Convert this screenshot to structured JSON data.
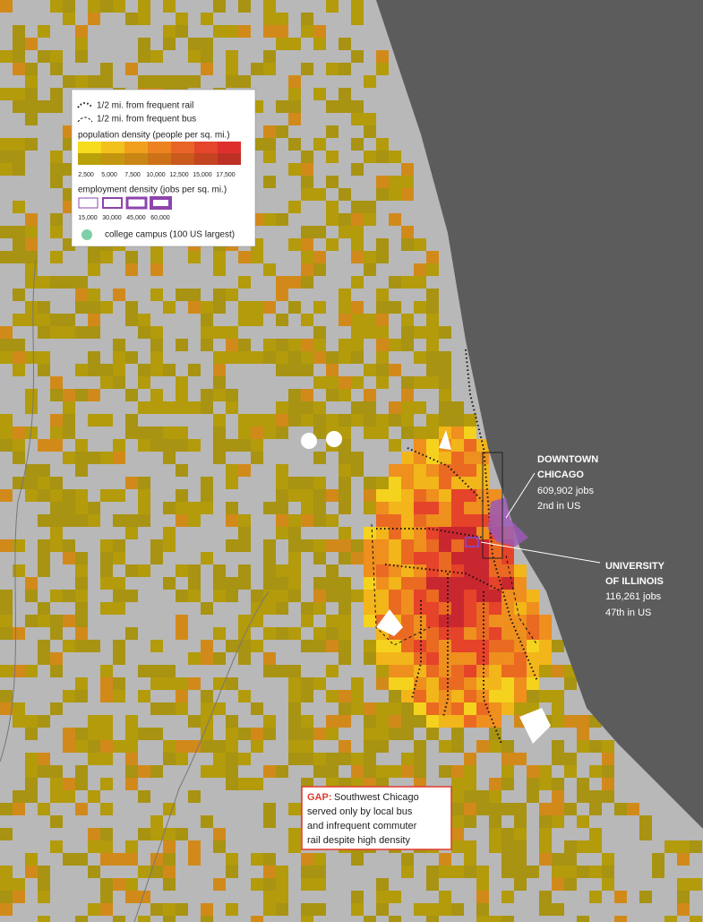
{
  "legend": {
    "rail": "1/2 mi. from frequent rail",
    "bus": "1/2 mi. from frequent bus",
    "population_title": "population density (people per sq. mi.)",
    "population_ticks": [
      "2,500",
      "5,000",
      "7,500",
      "10,000",
      "12,500",
      "15,000",
      "17,500"
    ],
    "employment_title": "employment density (jobs per sq. mi.)",
    "employment_ticks": [
      "15,000",
      "30,000",
      "45,000",
      "60,000"
    ],
    "campus": "college campus (100 US largest)"
  },
  "annotations": {
    "downtown": {
      "name": [
        "DOWNTOWN",
        "CHICAGO"
      ],
      "jobs": "609,902 jobs",
      "rank": "2nd in US"
    },
    "university": {
      "name": [
        "UNIVERSITY",
        "OF ILLINOIS"
      ],
      "jobs": "116,261 jobs",
      "rank": "47th in US"
    },
    "gap": {
      "label": "GAP:",
      "lines": [
        "Southwest Chicago",
        "served only by local bus",
        "and infrequent commuter",
        "rail despite high density"
      ]
    }
  }
}
